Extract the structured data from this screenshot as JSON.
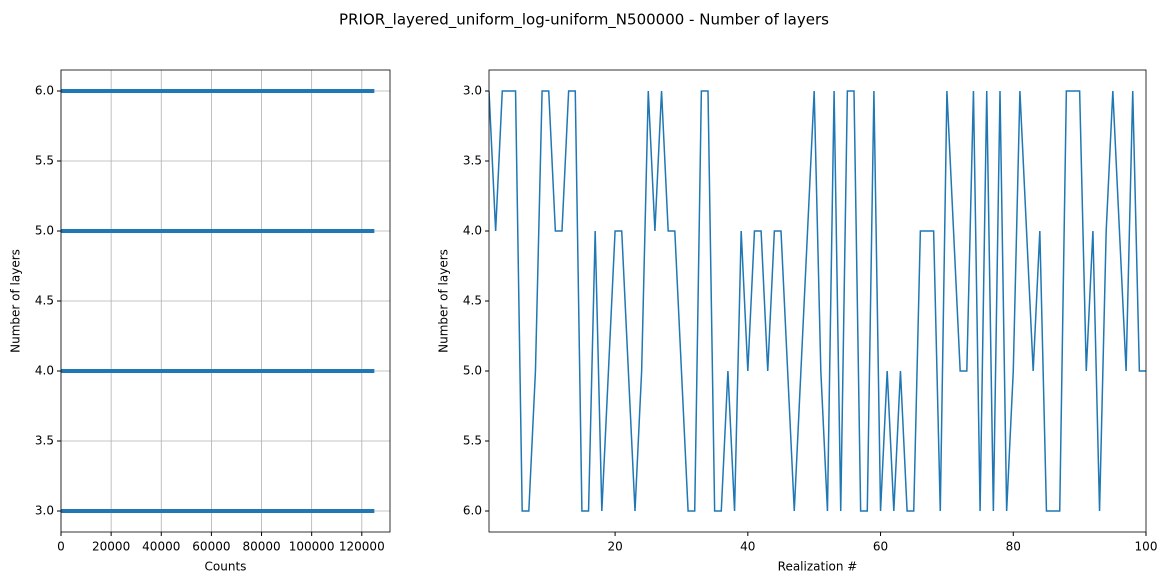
{
  "title": "PRIOR_layered_uniform_log-uniform_N500000 - Number of layers",
  "chart_data": [
    {
      "type": "barh",
      "xlabel": "Counts",
      "ylabel": "Number of layers",
      "y": [
        3,
        4,
        5,
        6
      ],
      "values": [
        125000,
        125000,
        125000,
        125000
      ],
      "color": "#1f77b4",
      "xlim": [
        0,
        131250
      ],
      "xticks": [
        0,
        20000,
        40000,
        60000,
        80000,
        100000,
        120000
      ],
      "ylim": [
        2.85,
        6.15
      ],
      "yticks": [
        {
          "value": 3,
          "label": "3.0"
        },
        {
          "value": 3.5,
          "label": "3.5"
        },
        {
          "value": 4,
          "label": "4.0"
        },
        {
          "value": 4.5,
          "label": "4.5"
        },
        {
          "value": 5,
          "label": "5.0"
        },
        {
          "value": 5.5,
          "label": "5.5"
        },
        {
          "value": 6,
          "label": "6.0"
        }
      ],
      "grid": true
    },
    {
      "type": "line",
      "xlabel": "Realization #",
      "ylabel": "Number of layers",
      "x": [
        1,
        2,
        3,
        4,
        5,
        6,
        7,
        8,
        9,
        10,
        11,
        12,
        13,
        14,
        15,
        16,
        17,
        18,
        19,
        20,
        21,
        22,
        23,
        24,
        25,
        26,
        27,
        28,
        29,
        30,
        31,
        32,
        33,
        34,
        35,
        36,
        37,
        38,
        39,
        40,
        41,
        42,
        43,
        44,
        45,
        46,
        47,
        48,
        49,
        50,
        51,
        52,
        53,
        54,
        55,
        56,
        57,
        58,
        59,
        60,
        61,
        62,
        63,
        64,
        65,
        66,
        67,
        68,
        69,
        70,
        71,
        72,
        73,
        74,
        75,
        76,
        77,
        78,
        79,
        80,
        81,
        82,
        83,
        84,
        85,
        86,
        87,
        88,
        89,
        90,
        91,
        92,
        93,
        94,
        95,
        96,
        97,
        98,
        99,
        100
      ],
      "series": [
        {
          "color": "#1f77b4",
          "values": [
            3,
            4,
            3,
            3,
            3,
            6,
            6,
            5,
            3,
            3,
            4,
            4,
            3,
            3,
            6,
            6,
            4,
            6,
            5,
            4,
            4,
            5,
            6,
            5,
            3,
            4,
            3,
            4,
            4,
            5,
            6,
            6,
            3,
            3,
            6,
            6,
            5,
            6,
            4,
            5,
            4,
            4,
            5,
            4,
            4,
            5,
            6,
            5,
            4,
            3,
            5,
            6,
            3,
            6,
            3,
            3,
            6,
            6,
            3,
            6,
            5,
            6,
            5,
            6,
            6,
            4,
            4,
            4,
            6,
            3,
            4,
            5,
            5,
            3,
            6,
            3,
            6,
            3,
            6,
            5,
            3,
            4,
            5,
            4,
            6,
            6,
            6,
            3,
            3,
            3,
            5,
            4,
            6,
            4,
            3,
            4,
            5,
            3,
            5,
            5
          ]
        }
      ],
      "xlim": [
        1,
        100
      ],
      "xticks": [
        20,
        40,
        60,
        80,
        100
      ],
      "ylim": [
        6.15,
        2.85
      ],
      "yticks": [
        {
          "value": 3,
          "label": "3.0"
        },
        {
          "value": 3.5,
          "label": "3.5"
        },
        {
          "value": 4,
          "label": "4.0"
        },
        {
          "value": 4.5,
          "label": "4.5"
        },
        {
          "value": 5,
          "label": "5.0"
        },
        {
          "value": 5.5,
          "label": "5.5"
        },
        {
          "value": 6,
          "label": "6.0"
        }
      ],
      "grid": false
    }
  ]
}
